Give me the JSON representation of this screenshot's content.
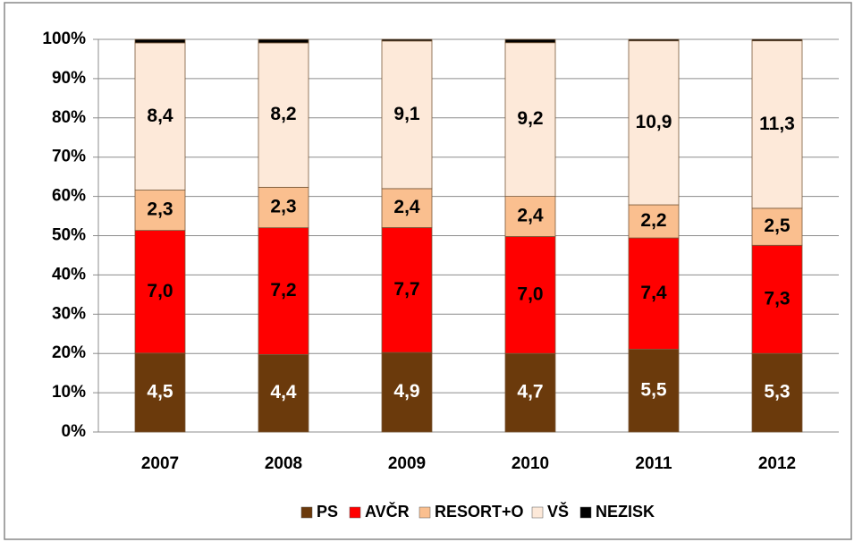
{
  "chart_data": {
    "type": "bar",
    "stacked": "percent",
    "categories": [
      "2007",
      "2008",
      "2009",
      "2010",
      "2011",
      "2012"
    ],
    "series": [
      {
        "name": "PS",
        "color": "#6b3a0c",
        "label_color": "#ffffff",
        "values": [
          4.5,
          4.4,
          4.9,
          4.7,
          5.5,
          5.3
        ],
        "value_labels": [
          "4,5",
          "4,4",
          "4,9",
          "4,7",
          "5,5",
          "5,3"
        ]
      },
      {
        "name": "AVČR",
        "color": "#ff0000",
        "label_color": "#000000",
        "values": [
          7.0,
          7.2,
          7.7,
          7.0,
          7.4,
          7.3
        ],
        "value_labels": [
          "7,0",
          "7,2",
          "7,7",
          "7,0",
          "7,4",
          "7,3"
        ]
      },
      {
        "name": "RESORT+O",
        "color": "#fabf8f",
        "label_color": "#000000",
        "values": [
          2.3,
          2.3,
          2.4,
          2.4,
          2.2,
          2.5
        ],
        "value_labels": [
          "2,3",
          "2,3",
          "2,4",
          "2,4",
          "2,2",
          "2,5"
        ]
      },
      {
        "name": "VŠ",
        "color": "#fde9d9",
        "label_color": "#000000",
        "values": [
          8.4,
          8.2,
          9.1,
          9.2,
          10.9,
          11.3
        ],
        "value_labels": [
          "8,4",
          "8,2",
          "9,1",
          "9,2",
          "10,9",
          "11,3"
        ]
      },
      {
        "name": "NEZISK",
        "color": "#000000",
        "values": [
          0.2,
          0.2,
          0.1,
          0.2,
          0.1,
          0.1
        ]
      }
    ],
    "ylim": [
      0,
      100
    ],
    "yticks": [
      {
        "value": 0,
        "label": "0%"
      },
      {
        "value": 10,
        "label": "10%"
      },
      {
        "value": 20,
        "label": "20%"
      },
      {
        "value": 30,
        "label": "30%"
      },
      {
        "value": 40,
        "label": "40%"
      },
      {
        "value": 50,
        "label": "50%"
      },
      {
        "value": 60,
        "label": "60%"
      },
      {
        "value": 70,
        "label": "70%"
      },
      {
        "value": 80,
        "label": "80%"
      },
      {
        "value": 90,
        "label": "90%"
      },
      {
        "value": 100,
        "label": "100%"
      }
    ],
    "grid": true,
    "legend": "bottom"
  }
}
